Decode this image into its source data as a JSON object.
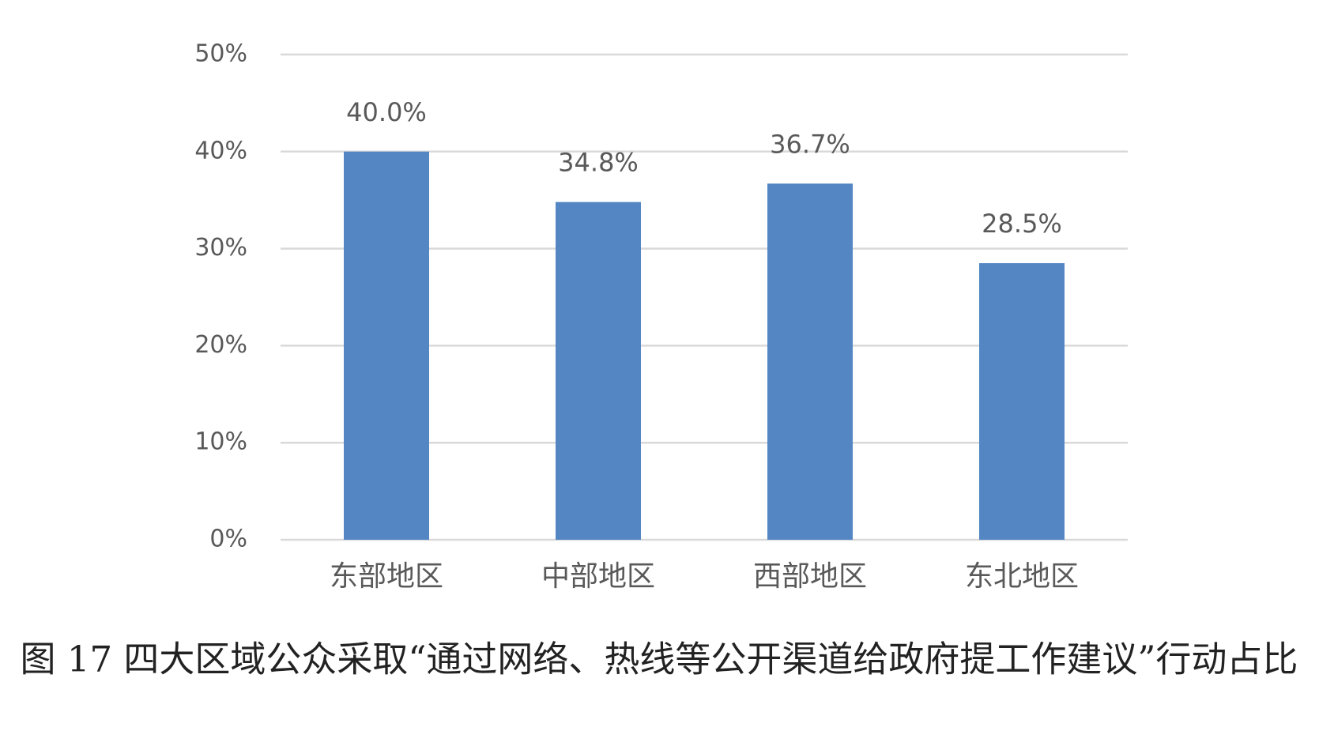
{
  "chart_data": {
    "type": "bar",
    "title": "图 17 四大区域公众采取“通过网络、热线等公开渠道给政府提工作建议”行动占比",
    "categories": [
      "东部地区",
      "中部地区",
      "西部地区",
      "东北地区"
    ],
    "values": [
      40.0,
      34.8,
      36.7,
      28.5
    ],
    "value_labels": [
      "40.0%",
      "34.8%",
      "36.7%",
      "28.5%"
    ],
    "color": "#5386c3",
    "ylim": [
      0,
      50
    ],
    "yticks": [
      {
        "value": 0,
        "label": "0%"
      },
      {
        "value": 10,
        "label": "10%"
      },
      {
        "value": 20,
        "label": "20%"
      },
      {
        "value": 30,
        "label": "30%"
      },
      {
        "value": 40,
        "label": "40%"
      },
      {
        "value": 50,
        "label": "50%"
      }
    ],
    "grid": true
  }
}
